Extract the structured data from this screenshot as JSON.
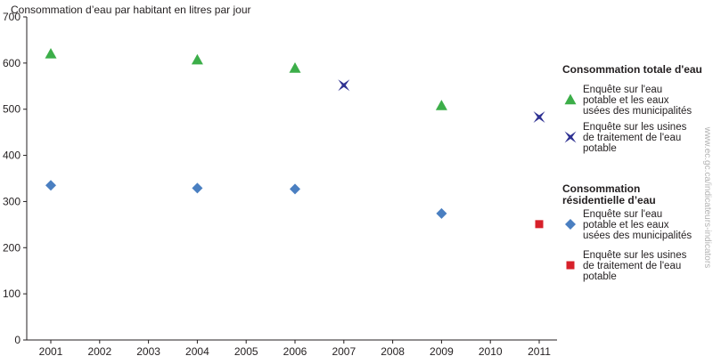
{
  "chart_data": {
    "type": "scatter",
    "title": "Consommation d’eau par habitant en litres par jour",
    "xlabel": "",
    "ylabel": "",
    "x_categories": [
      "2001",
      "2002",
      "2003",
      "2004",
      "2005",
      "2006",
      "2007",
      "2008",
      "2009",
      "2010",
      "2011"
    ],
    "ylim": [
      0,
      700
    ],
    "y_ticks": [
      0,
      100,
      200,
      300,
      400,
      500,
      600,
      700
    ],
    "grid": false,
    "legend_position": "right",
    "legend": [
      {
        "heading": "Consommation totale d'eau",
        "entries": [
          {
            "series": "total_municipal",
            "lines": [
              "Enquête sur l'eau",
              "potable et les eaux",
              "usées des municipalités"
            ]
          },
          {
            "series": "total_plants",
            "lines": [
              "Enquête sur les usines",
              "de traitement de l'eau",
              "potable"
            ]
          }
        ]
      },
      {
        "heading": "Consommation résidentielle d'eau",
        "heading_lines": [
          "Consommation",
          "résidentielle d’eau"
        ],
        "entries": [
          {
            "series": "res_municipal",
            "lines": [
              "Enquête sur l'eau",
              "potable et les eaux",
              "usées des municipalités"
            ]
          },
          {
            "series": "res_plants",
            "lines": [
              "Enquête sur les usines",
              "de traitement de l'eau",
              "potable"
            ]
          }
        ]
      }
    ],
    "series": [
      {
        "key": "total_municipal",
        "marker": "triangle",
        "color": "#3cae49",
        "points": [
          {
            "x": "2001",
            "y": 620
          },
          {
            "x": "2004",
            "y": 607
          },
          {
            "x": "2006",
            "y": 589
          },
          {
            "x": "2009",
            "y": 508
          }
        ]
      },
      {
        "key": "total_plants",
        "marker": "star4",
        "color": "#2e3192",
        "points": [
          {
            "x": "2007",
            "y": 552
          },
          {
            "x": "2011",
            "y": 483
          }
        ]
      },
      {
        "key": "res_municipal",
        "marker": "diamond",
        "color": "#4a7fc1",
        "points": [
          {
            "x": "2001",
            "y": 335
          },
          {
            "x": "2004",
            "y": 329
          },
          {
            "x": "2006",
            "y": 327
          },
          {
            "x": "2009",
            "y": 274
          }
        ]
      },
      {
        "key": "res_plants",
        "marker": "square",
        "color": "#d7202a",
        "points": [
          {
            "x": "2011",
            "y": 251
          }
        ]
      }
    ]
  },
  "watermark": "www.ec.gc.ca/indicateurs-indicators"
}
